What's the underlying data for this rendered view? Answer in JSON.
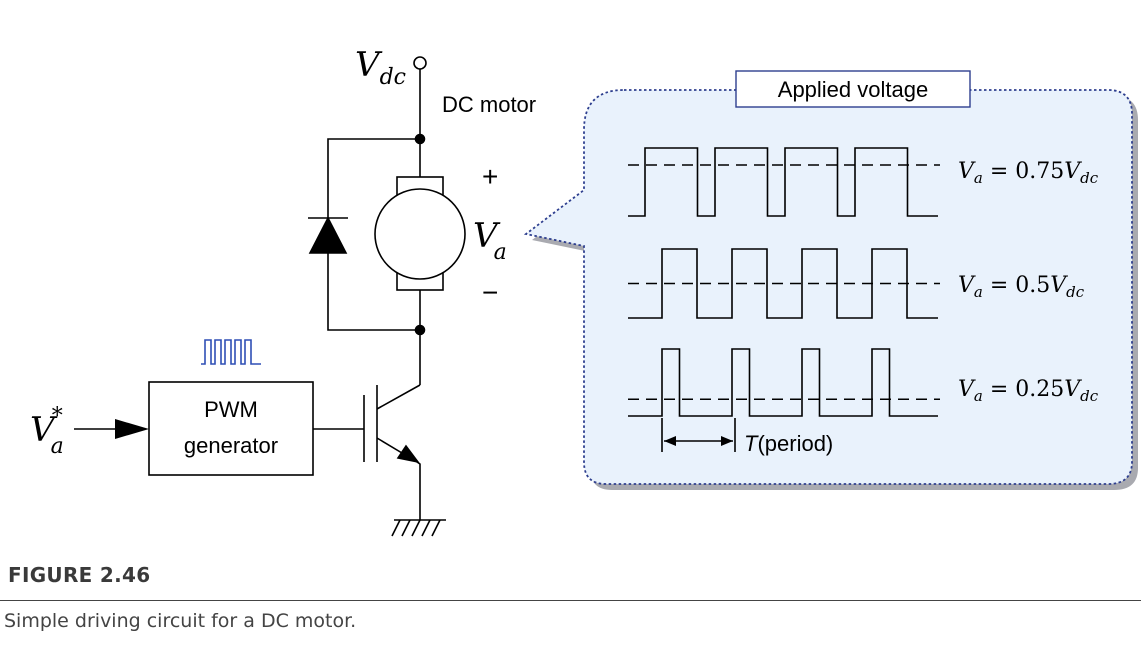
{
  "labels": {
    "vdc_main": "V",
    "vdc_sub": "dc",
    "dc_motor": "DC motor",
    "plus": "+",
    "minus": "−",
    "va_main": "V",
    "va_sub": "a",
    "vastar_main": "V",
    "vastar_sub": "a",
    "vastar_sup": "*",
    "pwm_line1": "PWM",
    "pwm_line2": "generator"
  },
  "callout": {
    "title": "Applied voltage",
    "waves": [
      {
        "duty": 0.75,
        "eq_v": "V",
        "eq_a": "a",
        "eq_mid": " = 0.75",
        "eq_v2": "V",
        "eq_dc": "dc"
      },
      {
        "duty": 0.5,
        "eq_v": "V",
        "eq_a": "a",
        "eq_mid": " = 0.5",
        "eq_v2": "V",
        "eq_dc": "dc"
      },
      {
        "duty": 0.25,
        "eq_v": "V",
        "eq_a": "a",
        "eq_mid": " = 0.25",
        "eq_v2": "V",
        "eq_dc": "dc"
      }
    ],
    "period_T": "T",
    "period_text": "(period)"
  },
  "caption": {
    "heading": "FIGURE 2.46",
    "text": "Simple driving circuit for a DC motor."
  },
  "colors": {
    "callout_fill": "#e9f2fc",
    "callout_border": "#2e3f8f",
    "callout_shadow": "#a9aab0",
    "pulse_icon": "#2f4fb5"
  }
}
